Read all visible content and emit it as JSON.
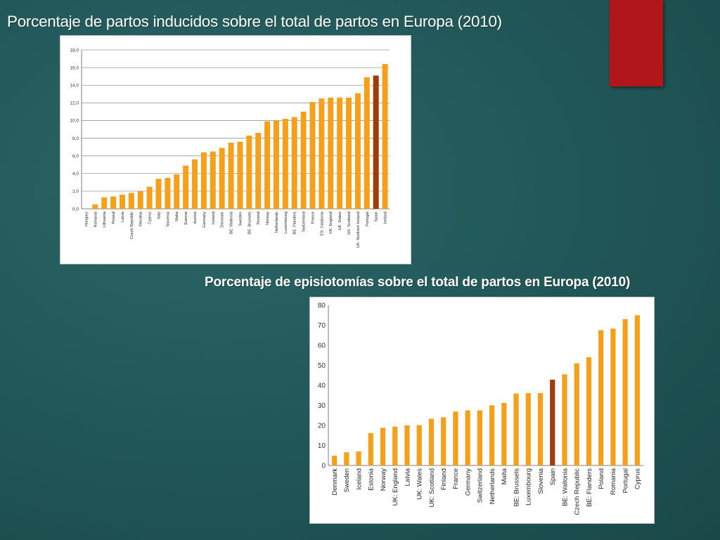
{
  "slide": {
    "title_1": "Porcentaje de partos inducidos sobre el total de partos en Europa (2010)",
    "title_2": "Porcentaje de episiotomías sobre el total de partos en Europa (2010)"
  },
  "colors": {
    "bar": "#f5a01a",
    "highlight": "#9e3c0e",
    "accent": "#b0161a",
    "background": "#235a5b"
  },
  "chart_data": [
    {
      "type": "bar",
      "categories": [
        "Hungary",
        "Romania",
        "Lithuania",
        "Poland",
        "Latvia",
        "Czech Republic",
        "Slovakia",
        "Cyprus",
        "Italy",
        "Slovenia",
        "Malta",
        "Estonia",
        "Austria",
        "Germany",
        "Iceland",
        "Denmark",
        "BE: Wallonia",
        "Sweden",
        "BE: Brussels",
        "Finland",
        "Norway",
        "Netherlands",
        "Luxembourg",
        "BE: Flanders",
        "Switzerland",
        "France",
        "ES: Catalonia",
        "UK: England",
        "UK: Wales",
        "UK: Scotland",
        "UK: Northern Ireland",
        "Portugal",
        "Spain",
        "Ireland"
      ],
      "values": [
        0.0,
        0.5,
        1.3,
        1.4,
        1.6,
        1.8,
        2.0,
        2.5,
        3.4,
        3.5,
        3.9,
        4.9,
        5.6,
        6.4,
        6.5,
        6.9,
        7.5,
        7.6,
        8.3,
        8.6,
        9.9,
        10.0,
        10.2,
        10.4,
        11.0,
        12.1,
        12.5,
        12.6,
        12.6,
        12.6,
        13.1,
        14.9,
        15.1,
        16.4
      ],
      "highlight": "Spain",
      "ylim": [
        0,
        18
      ],
      "yticks": [
        "0,0",
        "2,0",
        "4,0",
        "6,0",
        "8,0",
        "10,0",
        "12,0",
        "14,0",
        "16,0",
        "18,0"
      ],
      "grid": true,
      "legend": "none"
    },
    {
      "type": "bar",
      "categories": [
        "Denmark",
        "Sweden",
        "Iceland",
        "Estonia",
        "Norway",
        "UK: England",
        "Latvia",
        "UK: Wales",
        "UK: Scotland",
        "Finland",
        "France",
        "Germany",
        "Switzerland",
        "Netherlands",
        "Malta",
        "BE: Brussels",
        "Luxembourg",
        "Slovenia",
        "Spain",
        "BE: Wallonia",
        "Czech Republic",
        "BE: Flanders",
        "Poland",
        "Romania",
        "Portugal",
        "Cyprus"
      ],
      "values": [
        4.9,
        6.6,
        7.0,
        16.2,
        18.8,
        19.4,
        20.0,
        20.1,
        23.3,
        24.0,
        26.9,
        27.5,
        27.5,
        30.0,
        31.2,
        35.9,
        36.1,
        36.1,
        42.8,
        45.5,
        51.0,
        54.0,
        67.5,
        68.3,
        73.0,
        75.0
      ],
      "highlight": "Spain",
      "ylim": [
        0,
        80
      ],
      "yticks": [
        "0",
        "10",
        "20",
        "30",
        "40",
        "50",
        "60",
        "70",
        "80"
      ],
      "grid": false,
      "legend": "none"
    }
  ]
}
